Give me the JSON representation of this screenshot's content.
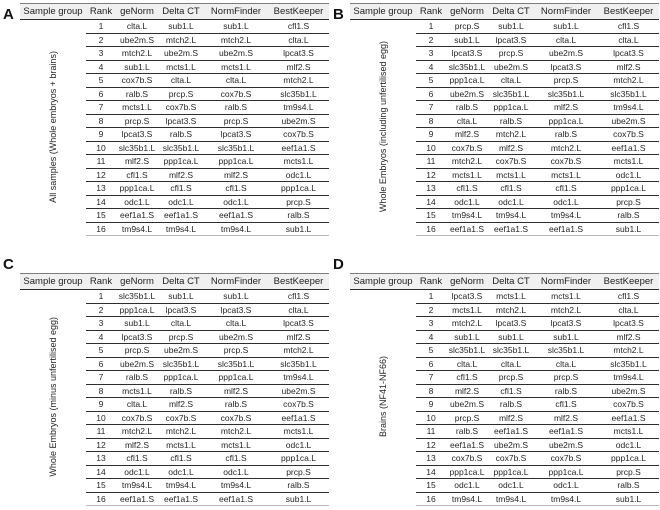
{
  "table": {
    "columns": [
      "Sample group",
      "Rank",
      "geNorm",
      "Delta CT",
      "NormFinder",
      "BestKeeper"
    ]
  },
  "colors": {
    "header_bg": "#f0f0f0",
    "rule_dark": "#2b2b2b",
    "rule_light": "#b8b8b8",
    "text": "#262626"
  },
  "panels": [
    {
      "letter": "A",
      "group_label": "All samples (Whole embryos + brains)",
      "rows": [
        [
          1,
          "clta.L",
          "sub1.L",
          "sub1.L",
          "cfl1.S"
        ],
        [
          2,
          "ube2m.S",
          "mtch2.L",
          "mtch2.L",
          "clta.L"
        ],
        [
          3,
          "mtch2.L",
          "ube2m.S",
          "ube2m.S",
          "lpcat3.S"
        ],
        [
          4,
          "sub1.L",
          "mcts1.L",
          "mcts1.L",
          "mlf2.S"
        ],
        [
          5,
          "cox7b.S",
          "clta.L",
          "clta.L",
          "mtch2.L"
        ],
        [
          6,
          "ralb.S",
          "prcp.S",
          "cox7b.S",
          "slc35b1.L"
        ],
        [
          7,
          "mcts1.L",
          "cox7b.S",
          "ralb.S",
          "tm9s4.L"
        ],
        [
          8,
          "prcp.S",
          "lpcat3.S",
          "prcp.S",
          "ube2m.S"
        ],
        [
          9,
          "lpcat3.S",
          "ralb.S",
          "lpcat3.S",
          "cox7b.S"
        ],
        [
          10,
          "slc35b1.L",
          "slc35b1.L",
          "slc35b1.L",
          "eef1a1.S"
        ],
        [
          11,
          "mlf2.S",
          "ppp1ca.L",
          "ppp1ca.L",
          "mcts1.L"
        ],
        [
          12,
          "cfl1.S",
          "mlf2.S",
          "mlf2.S",
          "odc1.L"
        ],
        [
          13,
          "ppp1ca.L",
          "cfl1.S",
          "cfl1.S",
          "ppp1ca.L"
        ],
        [
          14,
          "odc1.L",
          "odc1.L",
          "odc1.L",
          "prcp.S"
        ],
        [
          15,
          "eef1a1.S",
          "eef1a1.S",
          "eef1a1.S",
          "ralb.S"
        ],
        [
          16,
          "tm9s4.L",
          "tm9s4.L",
          "tm9s4.L",
          "sub1.L"
        ]
      ]
    },
    {
      "letter": "B",
      "group_label": "Whole Embryos (including unfertilised egg)",
      "rows": [
        [
          1,
          "prcp.S",
          "sub1.L",
          "sub1.L",
          "cfl1.S"
        ],
        [
          2,
          "sub1.L",
          "lpcat3.S",
          "clta.L",
          "clta.L"
        ],
        [
          3,
          "lpcat3.S",
          "prcp.S",
          "ube2m.S",
          "lpcat3.S"
        ],
        [
          4,
          "slc35b1.L",
          "ube2m.S",
          "lpcat3.S",
          "mlf2.S"
        ],
        [
          5,
          "ppp1ca.L",
          "clta.L",
          "prcp.S",
          "mtch2.L"
        ],
        [
          6,
          "ube2m.S",
          "slc35b1.L",
          "slc35b1.L",
          "slc35b1.L"
        ],
        [
          7,
          "ralb.S",
          "ppp1ca.L",
          "mlf2.S",
          "tm9s4.L"
        ],
        [
          8,
          "clta.L",
          "ralb.S",
          "ppp1ca.L",
          "ube2m.S"
        ],
        [
          9,
          "mlf2.S",
          "mtch2.L",
          "ralb.S",
          "cox7b.S"
        ],
        [
          10,
          "cox7b.S",
          "mlf2.S",
          "mtch2.L",
          "eef1a1.S"
        ],
        [
          11,
          "mtch2.L",
          "cox7b.S",
          "cox7b.S",
          "mcts1.L"
        ],
        [
          12,
          "mcts1.L",
          "mcts1.L",
          "mcts1.L",
          "odc1.L"
        ],
        [
          13,
          "cfl1.S",
          "cfl1.S",
          "cfl1.S",
          "ppp1ca.L"
        ],
        [
          14,
          "odc1.L",
          "odc1.L",
          "odc1.L",
          "prcp.S"
        ],
        [
          15,
          "tm9s4.L",
          "tm9s4.L",
          "tm9s4.L",
          "ralb.S"
        ],
        [
          16,
          "eef1a1.S",
          "eef1a1.S",
          "eef1a1.S",
          "sub1.L"
        ]
      ]
    },
    {
      "letter": "C",
      "group_label": "Whole Embryos (minus unfertilised egg)",
      "rows": [
        [
          1,
          "slc35b1.L",
          "sub1.L",
          "sub1.L",
          "cfl1.S"
        ],
        [
          2,
          "ppp1ca.L",
          "lpcat3.S",
          "lpcat3.S",
          "clta.L"
        ],
        [
          3,
          "sub1.L",
          "clta.L",
          "clta.L",
          "lpcat3.S"
        ],
        [
          4,
          "lpcat3.S",
          "prcp.S",
          "ube2m.S",
          "mlf2.S"
        ],
        [
          5,
          "prcp.S",
          "ube2m.S",
          "prcp.S",
          "mtch2.L"
        ],
        [
          6,
          "ube2m.S",
          "slc35b1.L",
          "slc35b1.L",
          "slc35b1.L"
        ],
        [
          7,
          "ralb.S",
          "ppp1ca.L",
          "ppp1ca.L",
          "tm9s4.L"
        ],
        [
          8,
          "mcts1.L",
          "ralb.S",
          "mlf2.S",
          "ube2m.S"
        ],
        [
          9,
          "clta.L",
          "mlf2.S",
          "ralb.S",
          "cox7b.S"
        ],
        [
          10,
          "cox7b.S",
          "cox7b.S",
          "cox7b.S",
          "eef1a1.S"
        ],
        [
          11,
          "mtch2.L",
          "mtch2.L",
          "mtch2.L",
          "mcts1.L"
        ],
        [
          12,
          "mlf2.S",
          "mcts1.L",
          "mcts1.L",
          "odc1.L"
        ],
        [
          13,
          "cfl1.S",
          "cfl1.S",
          "cfl1.S",
          "ppp1ca.L"
        ],
        [
          14,
          "odc1.L",
          "odc1.L",
          "odc1.L",
          "prcp.S"
        ],
        [
          15,
          "tm9s4.L",
          "tm9s4.L",
          "tm9s4.L",
          "ralb.S"
        ],
        [
          16,
          "eef1a1.S",
          "eef1a1.S",
          "eef1a1.S",
          "sub1.L"
        ]
      ]
    },
    {
      "letter": "D",
      "group_label": "Brains (NF41-NF66)",
      "rows": [
        [
          1,
          "lpcat3.S",
          "mcts1.L",
          "mcts1.L",
          "cfl1.S"
        ],
        [
          2,
          "mcts1.L",
          "mtch2.L",
          "mtch2.L",
          "clta.L"
        ],
        [
          3,
          "mtch2.L",
          "lpcat3.S",
          "lpcat3.S",
          "lpcat3.S"
        ],
        [
          4,
          "sub1.L",
          "sub1.L",
          "sub1.L",
          "mlf2.S"
        ],
        [
          5,
          "slc35b1.L",
          "slc35b1.L",
          "slc35b1.L",
          "mtch2.L"
        ],
        [
          6,
          "clta.L",
          "clta.L",
          "clta.L",
          "slc35b1.L"
        ],
        [
          7,
          "cfl1.S",
          "prcp.S",
          "prcp.S",
          "tm9s4.L"
        ],
        [
          8,
          "mlf2.S",
          "cfl1.S",
          "ralb.S",
          "ube2m.S"
        ],
        [
          9,
          "ube2m.S",
          "ralb.S",
          "cfl1.S",
          "cox7b.S"
        ],
        [
          10,
          "prcp.S",
          "mlf2.S",
          "mlf2.S",
          "eef1a1.S"
        ],
        [
          11,
          "ralb.S",
          "eef1a1.S",
          "eef1a1.S",
          "mcts1.L"
        ],
        [
          12,
          "eef1a1.S",
          "ube2m.S",
          "ube2m.S",
          "odc1.L"
        ],
        [
          13,
          "cox7b.S",
          "cox7b.S",
          "cox7b.S",
          "ppp1ca.L"
        ],
        [
          14,
          "ppp1ca.L",
          "ppp1ca.L",
          "ppp1ca.L",
          "prcp.S"
        ],
        [
          15,
          "odc1.L",
          "odc1.L",
          "odc1.L",
          "ralb.S"
        ],
        [
          16,
          "tm9s4.L",
          "tm9s4.L",
          "tm9s4.L",
          "sub1.L"
        ]
      ]
    }
  ]
}
